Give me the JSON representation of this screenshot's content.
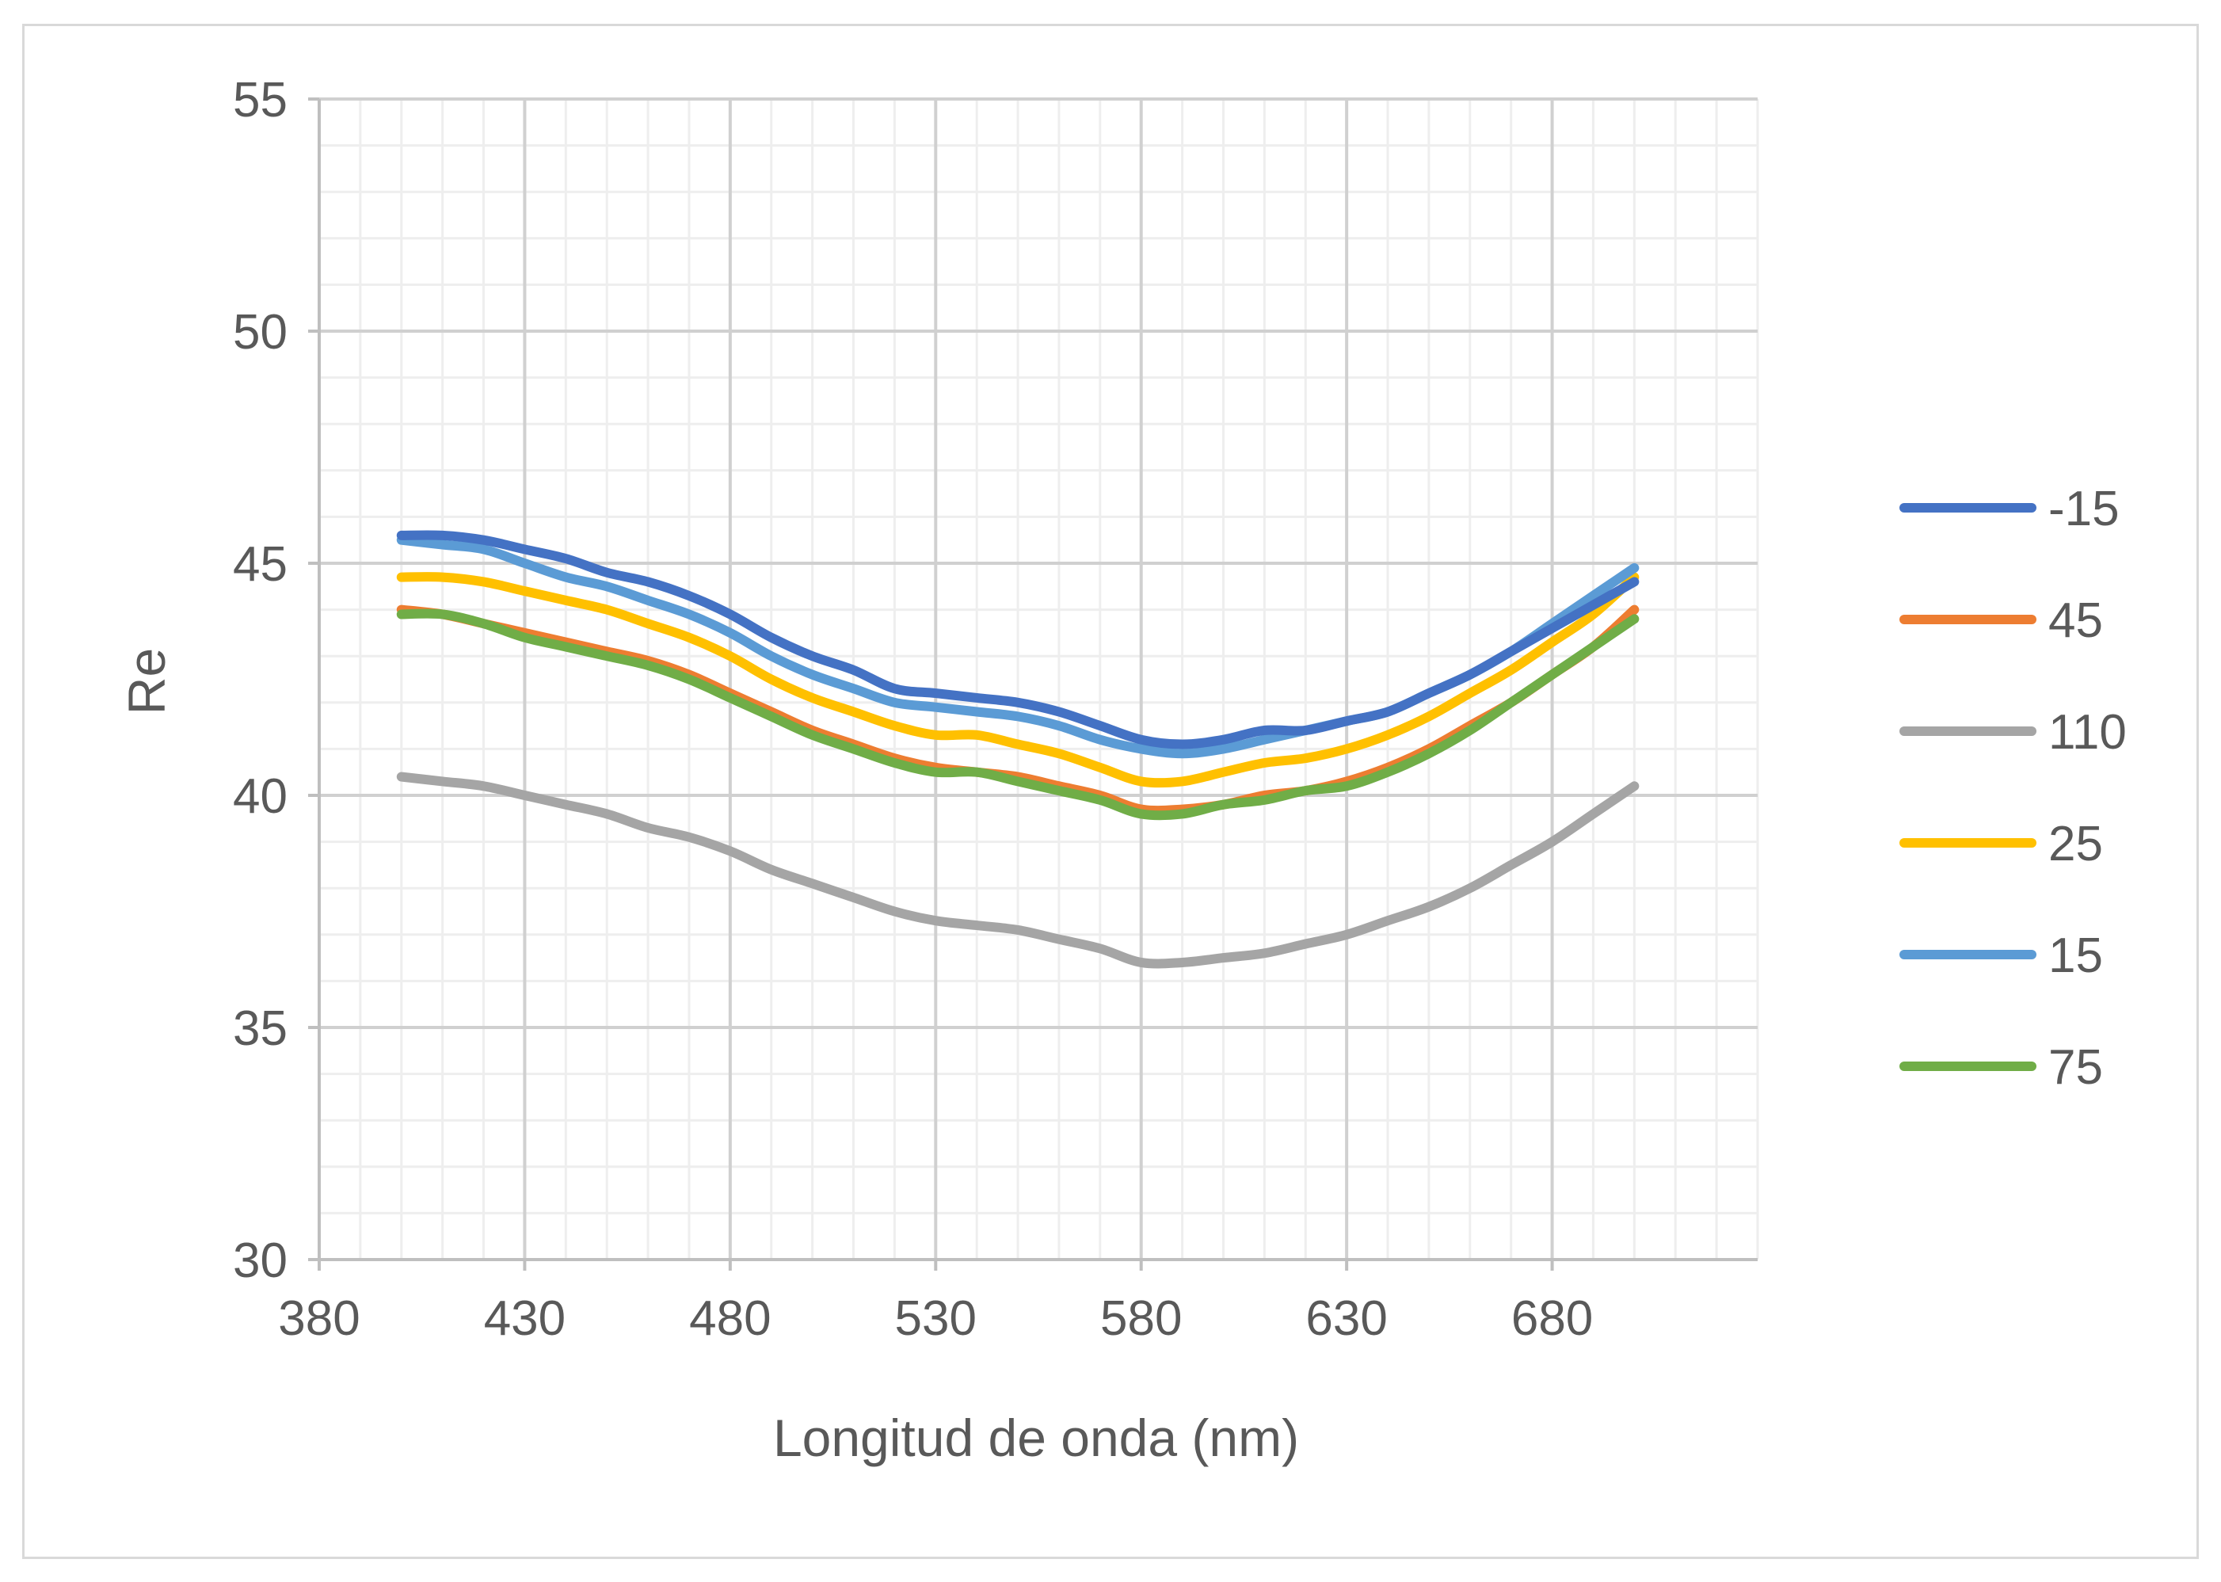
{
  "chart_data": {
    "type": "line",
    "title": "",
    "xlabel": "Longitud de onda (nm)",
    "ylabel": "Re",
    "xlim": [
      380,
      730
    ],
    "ylim": [
      30,
      55
    ],
    "x_ticks": [
      380,
      430,
      480,
      530,
      580,
      630,
      680
    ],
    "y_ticks": [
      30,
      35,
      40,
      45,
      50,
      55
    ],
    "x_minor_step": 10,
    "y_minor_step": 1,
    "grid": true,
    "legend_position": "right",
    "x": [
      400,
      410,
      420,
      430,
      440,
      450,
      460,
      470,
      480,
      490,
      500,
      510,
      520,
      530,
      540,
      550,
      560,
      570,
      580,
      590,
      600,
      610,
      620,
      630,
      640,
      650,
      660,
      670,
      680,
      690,
      700
    ],
    "series": [
      {
        "name": "-15",
        "color": "#4472C4",
        "values": [
          45.6,
          45.6,
          45.5,
          45.3,
          45.1,
          44.8,
          44.6,
          44.3,
          43.9,
          43.4,
          43.0,
          42.7,
          42.3,
          42.2,
          42.1,
          42.0,
          41.8,
          41.5,
          41.2,
          41.1,
          41.2,
          41.4,
          41.4,
          41.6,
          41.8,
          42.2,
          42.6,
          43.1,
          43.6,
          44.1,
          44.6
        ]
      },
      {
        "name": "45",
        "color": "#ED7D31",
        "values": [
          44.0,
          43.9,
          43.7,
          43.5,
          43.3,
          43.1,
          42.9,
          42.6,
          42.2,
          41.8,
          41.4,
          41.1,
          40.8,
          40.6,
          40.5,
          40.4,
          40.2,
          40.0,
          39.7,
          39.7,
          39.8,
          40.0,
          40.1,
          40.3,
          40.6,
          41.0,
          41.5,
          42.0,
          42.6,
          43.2,
          44.0
        ]
      },
      {
        "name": "110",
        "color": "#A5A5A5",
        "values": [
          40.4,
          40.3,
          40.2,
          40.0,
          39.8,
          39.6,
          39.3,
          39.1,
          38.8,
          38.4,
          38.1,
          37.8,
          37.5,
          37.3,
          37.2,
          37.1,
          36.9,
          36.7,
          36.4,
          36.4,
          36.5,
          36.6,
          36.8,
          37.0,
          37.3,
          37.6,
          38.0,
          38.5,
          39.0,
          39.6,
          40.2
        ]
      },
      {
        "name": "25",
        "color": "#FFC000",
        "values": [
          44.7,
          44.7,
          44.6,
          44.4,
          44.2,
          44.0,
          43.7,
          43.4,
          43.0,
          42.5,
          42.1,
          41.8,
          41.5,
          41.3,
          41.3,
          41.1,
          40.9,
          40.6,
          40.3,
          40.3,
          40.5,
          40.7,
          40.8,
          41.0,
          41.3,
          41.7,
          42.2,
          42.7,
          43.3,
          43.9,
          44.7
        ]
      },
      {
        "name": "15",
        "color": "#5B9BD5",
        "values": [
          45.5,
          45.4,
          45.3,
          45.0,
          44.7,
          44.5,
          44.2,
          43.9,
          43.5,
          43.0,
          42.6,
          42.3,
          42.0,
          41.9,
          41.8,
          41.7,
          41.5,
          41.2,
          41.0,
          40.9,
          41.0,
          41.2,
          41.4,
          41.6,
          41.8,
          42.2,
          42.6,
          43.1,
          43.7,
          44.3,
          44.9
        ]
      },
      {
        "name": "75",
        "color": "#70AD47",
        "values": [
          43.9,
          43.9,
          43.7,
          43.4,
          43.2,
          43.0,
          42.8,
          42.5,
          42.1,
          41.7,
          41.3,
          41.0,
          40.7,
          40.5,
          40.5,
          40.3,
          40.1,
          39.9,
          39.6,
          39.6,
          39.8,
          39.9,
          40.1,
          40.2,
          40.5,
          40.9,
          41.4,
          42.0,
          42.6,
          43.2,
          43.8
        ]
      }
    ]
  }
}
